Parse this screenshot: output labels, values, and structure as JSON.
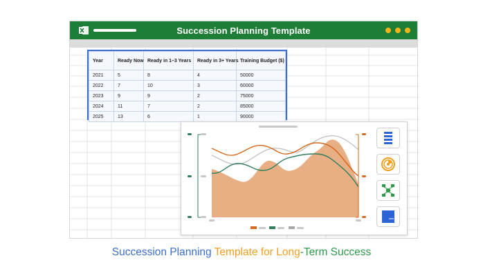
{
  "window": {
    "title": "Succession Planning Template",
    "accent": "#1e7d36",
    "window_dot_color": "#f2b41b",
    "app_icon": "excel-icon"
  },
  "table": {
    "headers": [
      "Year",
      "Ready Now",
      "Ready in 1–3 Years",
      "Ready in 3+ Years",
      "Training Budget ($)"
    ],
    "rows": [
      [
        "2021",
        "5",
        "8",
        "4",
        "50000"
      ],
      [
        "2022",
        "7",
        "10",
        "3",
        "60000"
      ],
      [
        "2023",
        "9",
        "9",
        "2",
        "75000"
      ],
      [
        "2024",
        "11",
        "7",
        "2",
        "85000"
      ],
      [
        "2025",
        "13",
        "6",
        "1",
        "90000"
      ]
    ]
  },
  "chart": {
    "series_colors": {
      "area": "#e8ae84",
      "orange_line": "#d2691e",
      "green_line": "#2e7d5b",
      "gray_line": "#c4c4c4"
    },
    "tools": [
      {
        "icon": "bar-list-icon",
        "color": "#2c64d6"
      },
      {
        "icon": "radial-chart-icon",
        "color": "#f0a020"
      },
      {
        "icon": "org-chart-icon",
        "color": "#2e9a4a"
      },
      {
        "icon": "table-chart-icon",
        "color": "#2c64d6"
      }
    ]
  },
  "caption": {
    "parts": [
      {
        "text": "Succession Planning ",
        "color": "#3b6fcf"
      },
      {
        "text": "Template for Long",
        "color": "#f0a020"
      },
      {
        "text": "-Term Success",
        "color": "#2e9a4a"
      }
    ]
  }
}
